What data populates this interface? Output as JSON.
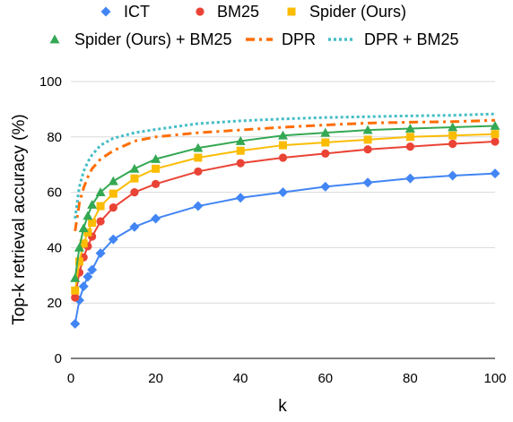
{
  "chart_data": {
    "type": "line",
    "title": "",
    "xlabel": "k",
    "ylabel": "Top-k retrieval accuracy (%)",
    "xlim": [
      0,
      100
    ],
    "ylim": [
      0,
      100
    ],
    "x_ticks": [
      "0",
      "20",
      "40",
      "60",
      "80",
      "100"
    ],
    "y_ticks": [
      "0",
      "20",
      "40",
      "60",
      "80",
      "100"
    ],
    "grid": "horizontal",
    "legend_position": "top",
    "series": [
      {
        "name": "ICT",
        "color": "#4285F4",
        "marker": "diamond",
        "line_style": "solid",
        "x": [
          1,
          2,
          3,
          4,
          5,
          7,
          10,
          15,
          20,
          30,
          40,
          50,
          60,
          70,
          80,
          90,
          100
        ],
        "y": [
          12.5,
          21,
          26,
          29.5,
          32,
          38,
          43,
          47.5,
          50.5,
          55,
          58,
          60,
          62,
          63.5,
          65,
          66,
          66.8
        ]
      },
      {
        "name": "BM25",
        "color": "#EA4335",
        "marker": "circle",
        "line_style": "solid",
        "x": [
          1,
          2,
          3,
          4,
          5,
          7,
          10,
          15,
          20,
          30,
          40,
          50,
          60,
          70,
          80,
          90,
          100
        ],
        "y": [
          22,
          31,
          36.5,
          40.5,
          44,
          49.5,
          54.5,
          60,
          63,
          67.5,
          70.5,
          72.5,
          74,
          75.5,
          76.5,
          77.5,
          78.3
        ]
      },
      {
        "name": "Spider (Ours)",
        "color": "#FBBC04",
        "marker": "square",
        "line_style": "solid",
        "x": [
          1,
          2,
          3,
          4,
          5,
          7,
          10,
          15,
          20,
          30,
          40,
          50,
          60,
          70,
          80,
          90,
          100
        ],
        "y": [
          24.5,
          35,
          41.5,
          45.5,
          49,
          55,
          59.5,
          65,
          68.5,
          72.5,
          75,
          77,
          78,
          79,
          80,
          80.5,
          81
        ]
      },
      {
        "name": "Spider (Ours) + BM25",
        "color": "#34A853",
        "marker": "triangle",
        "line_style": "solid",
        "x": [
          1,
          2,
          3,
          4,
          5,
          7,
          10,
          15,
          20,
          30,
          40,
          50,
          60,
          70,
          80,
          90,
          100
        ],
        "y": [
          29,
          40,
          47,
          51.5,
          55.5,
          60,
          64,
          68.5,
          72,
          76,
          78.5,
          80.5,
          81.5,
          82.5,
          83,
          83.5,
          84
        ]
      },
      {
        "name": "DPR",
        "color": "#FF6D01",
        "marker": "none",
        "line_style": "dash-dot",
        "x": [
          1,
          2,
          3,
          4,
          5,
          7,
          10,
          15,
          20,
          30,
          40,
          50,
          60,
          70,
          80,
          90,
          100
        ],
        "y": [
          46,
          56,
          61.5,
          65.5,
          68.5,
          72,
          75,
          78.5,
          80,
          81.5,
          82.5,
          83.5,
          84.3,
          85,
          85.3,
          85.5,
          86
        ]
      },
      {
        "name": "DPR + BM25",
        "color": "#46BDC6",
        "marker": "none",
        "line_style": "dotted",
        "x": [
          1,
          2,
          3,
          4,
          5,
          7,
          10,
          15,
          20,
          30,
          40,
          50,
          60,
          70,
          80,
          90,
          100
        ],
        "y": [
          50.5,
          62,
          67.5,
          71,
          73.5,
          77,
          79.5,
          81.5,
          82.7,
          84.8,
          85.8,
          86.5,
          87,
          87.3,
          87.6,
          87.8,
          88.3
        ]
      }
    ]
  }
}
